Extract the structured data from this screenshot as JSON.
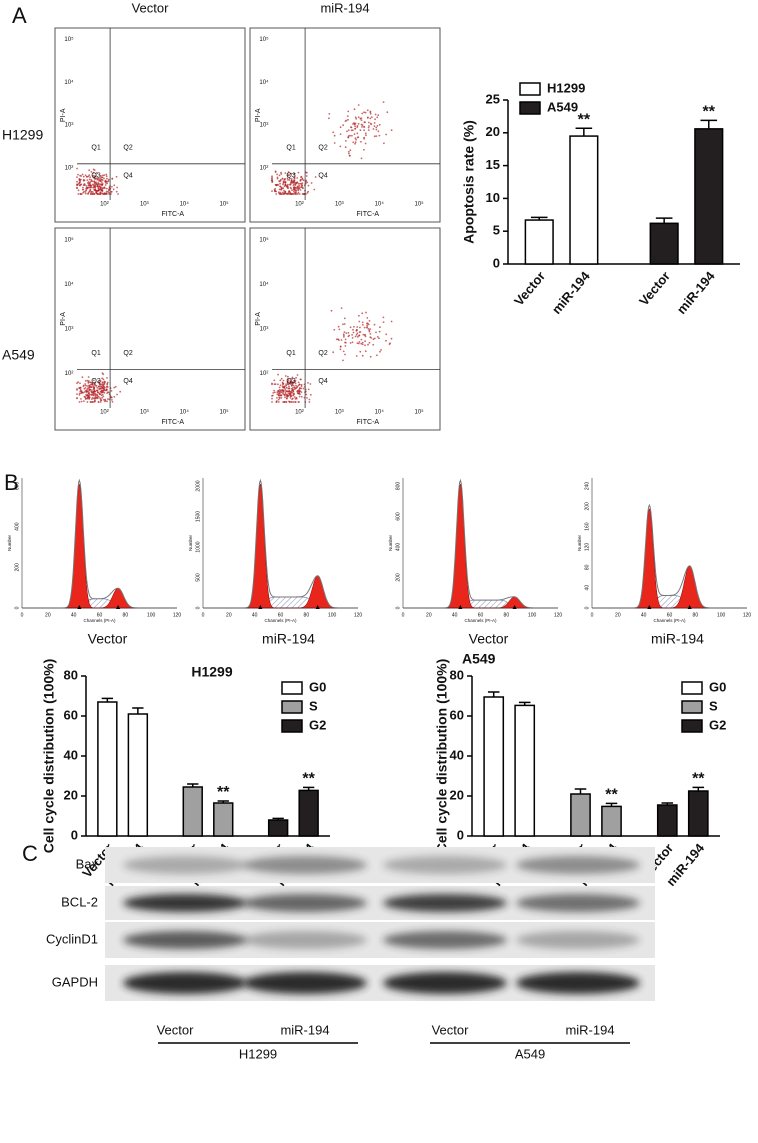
{
  "panel_labels": [
    "A",
    "B",
    "C"
  ],
  "flow": {
    "columns": [
      "Vector",
      "miR-194"
    ],
    "rows": [
      "H1299",
      "A549"
    ],
    "quadrants": [
      "Q1",
      "Q2",
      "Q3",
      "Q4"
    ],
    "x_label": "FITC-A",
    "y_label": "PI-A",
    "x_ticks": [
      "10²",
      "10³",
      "10⁴",
      "10⁵"
    ],
    "y_ticks": [
      "10²",
      "10³",
      "10⁴",
      "10⁵"
    ]
  },
  "cell_cycle_histograms": {
    "labels": [
      "Vector",
      "miR-194",
      "Vector",
      "miR-194"
    ],
    "x_label": "Channels (PI-A)",
    "y_label": "Number",
    "x_ticks": [
      "0",
      "20",
      "40",
      "60",
      "80",
      "100",
      "120"
    ],
    "y_ticks": [
      [
        "0",
        "200",
        "400",
        "600"
      ],
      [
        "0",
        "500",
        "1000",
        "1500",
        "2000"
      ],
      [
        "0",
        "200",
        "400",
        "600",
        "800"
      ],
      [
        "0",
        "40",
        "80",
        "120",
        "160",
        "200",
        "240"
      ]
    ]
  },
  "chart_data": [
    {
      "type": "bar",
      "y_label": "Apoptosis rate (%)",
      "categories": [
        "Vector",
        "miR-194",
        "Vector",
        "miR-194"
      ],
      "series": [
        {
          "name": "H1299",
          "color": "#ffffff",
          "values": [
            6.7,
            19.5,
            null,
            null
          ],
          "errors": [
            0.4,
            1.2,
            null,
            null
          ],
          "significance": [
            null,
            "**",
            null,
            null
          ]
        },
        {
          "name": "A549",
          "color": "#231f20",
          "values": [
            null,
            null,
            6.2,
            20.6
          ],
          "errors": [
            null,
            null,
            0.8,
            1.3
          ],
          "significance": [
            null,
            null,
            null,
            "**"
          ]
        }
      ],
      "ylim": [
        0,
        25
      ],
      "yticks": [
        0,
        5,
        10,
        15,
        20,
        25
      ],
      "legend": "upper left"
    },
    {
      "type": "bar",
      "title": "H1299",
      "y_label": "Cell cycle distribution (100%)",
      "categories": [
        "Vector",
        "miR-194",
        "Vector",
        "miR-194",
        "Vector",
        "miR-194"
      ],
      "series": [
        {
          "name": "G0",
          "color": "#ffffff",
          "values": [
            67,
            61,
            null,
            null,
            null,
            null
          ],
          "errors": [
            1.8,
            3,
            null,
            null,
            null,
            null
          ],
          "significance": [
            null,
            null,
            null,
            null,
            null,
            null
          ]
        },
        {
          "name": "S",
          "color": "#a0a0a0",
          "values": [
            null,
            null,
            24.5,
            16.5,
            null,
            null
          ],
          "errors": [
            null,
            null,
            1.5,
            1,
            null,
            null
          ],
          "significance": [
            null,
            null,
            null,
            "**",
            null,
            null
          ]
        },
        {
          "name": "G2",
          "color": "#231f20",
          "values": [
            null,
            null,
            null,
            null,
            8,
            22.8
          ],
          "errors": [
            null,
            null,
            null,
            null,
            0.8,
            1.5
          ],
          "significance": [
            null,
            null,
            null,
            null,
            null,
            "**"
          ]
        }
      ],
      "ylim": [
        0,
        80
      ],
      "yticks": [
        0,
        20,
        40,
        60,
        80
      ],
      "legend": "upper right"
    },
    {
      "type": "bar",
      "title": "A549",
      "y_label": "Cell cycle distribution (100%)",
      "categories": [
        "Vector",
        "miR-194",
        "Vector",
        "miR-194",
        "Vector",
        "miR-194"
      ],
      "series": [
        {
          "name": "G0",
          "color": "#ffffff",
          "values": [
            69.5,
            65.3,
            null,
            null,
            null,
            null
          ],
          "errors": [
            2.5,
            1.5,
            null,
            null,
            null,
            null
          ],
          "significance": [
            null,
            null,
            null,
            null,
            null,
            null
          ]
        },
        {
          "name": "S",
          "color": "#a0a0a0",
          "values": [
            null,
            null,
            21,
            14.8,
            null,
            null
          ],
          "errors": [
            null,
            null,
            2.5,
            1.5,
            null,
            null
          ],
          "significance": [
            null,
            null,
            null,
            "**",
            null,
            null
          ]
        },
        {
          "name": "G2",
          "color": "#231f20",
          "values": [
            null,
            null,
            null,
            null,
            15.5,
            22.5
          ],
          "errors": [
            null,
            null,
            null,
            null,
            1,
            1.8
          ],
          "significance": [
            null,
            null,
            null,
            null,
            null,
            "**"
          ]
        }
      ],
      "ylim": [
        0,
        80
      ],
      "yticks": [
        0,
        20,
        40,
        60,
        80
      ],
      "legend": "upper right"
    }
  ],
  "western_blot": {
    "proteins": [
      "Bax",
      "BCL-2",
      "CyclinD1",
      "GAPDH"
    ],
    "lanes": [
      "Vector",
      "miR-194",
      "Vector",
      "miR-194"
    ],
    "groups": [
      "H1299",
      "A549"
    ]
  }
}
